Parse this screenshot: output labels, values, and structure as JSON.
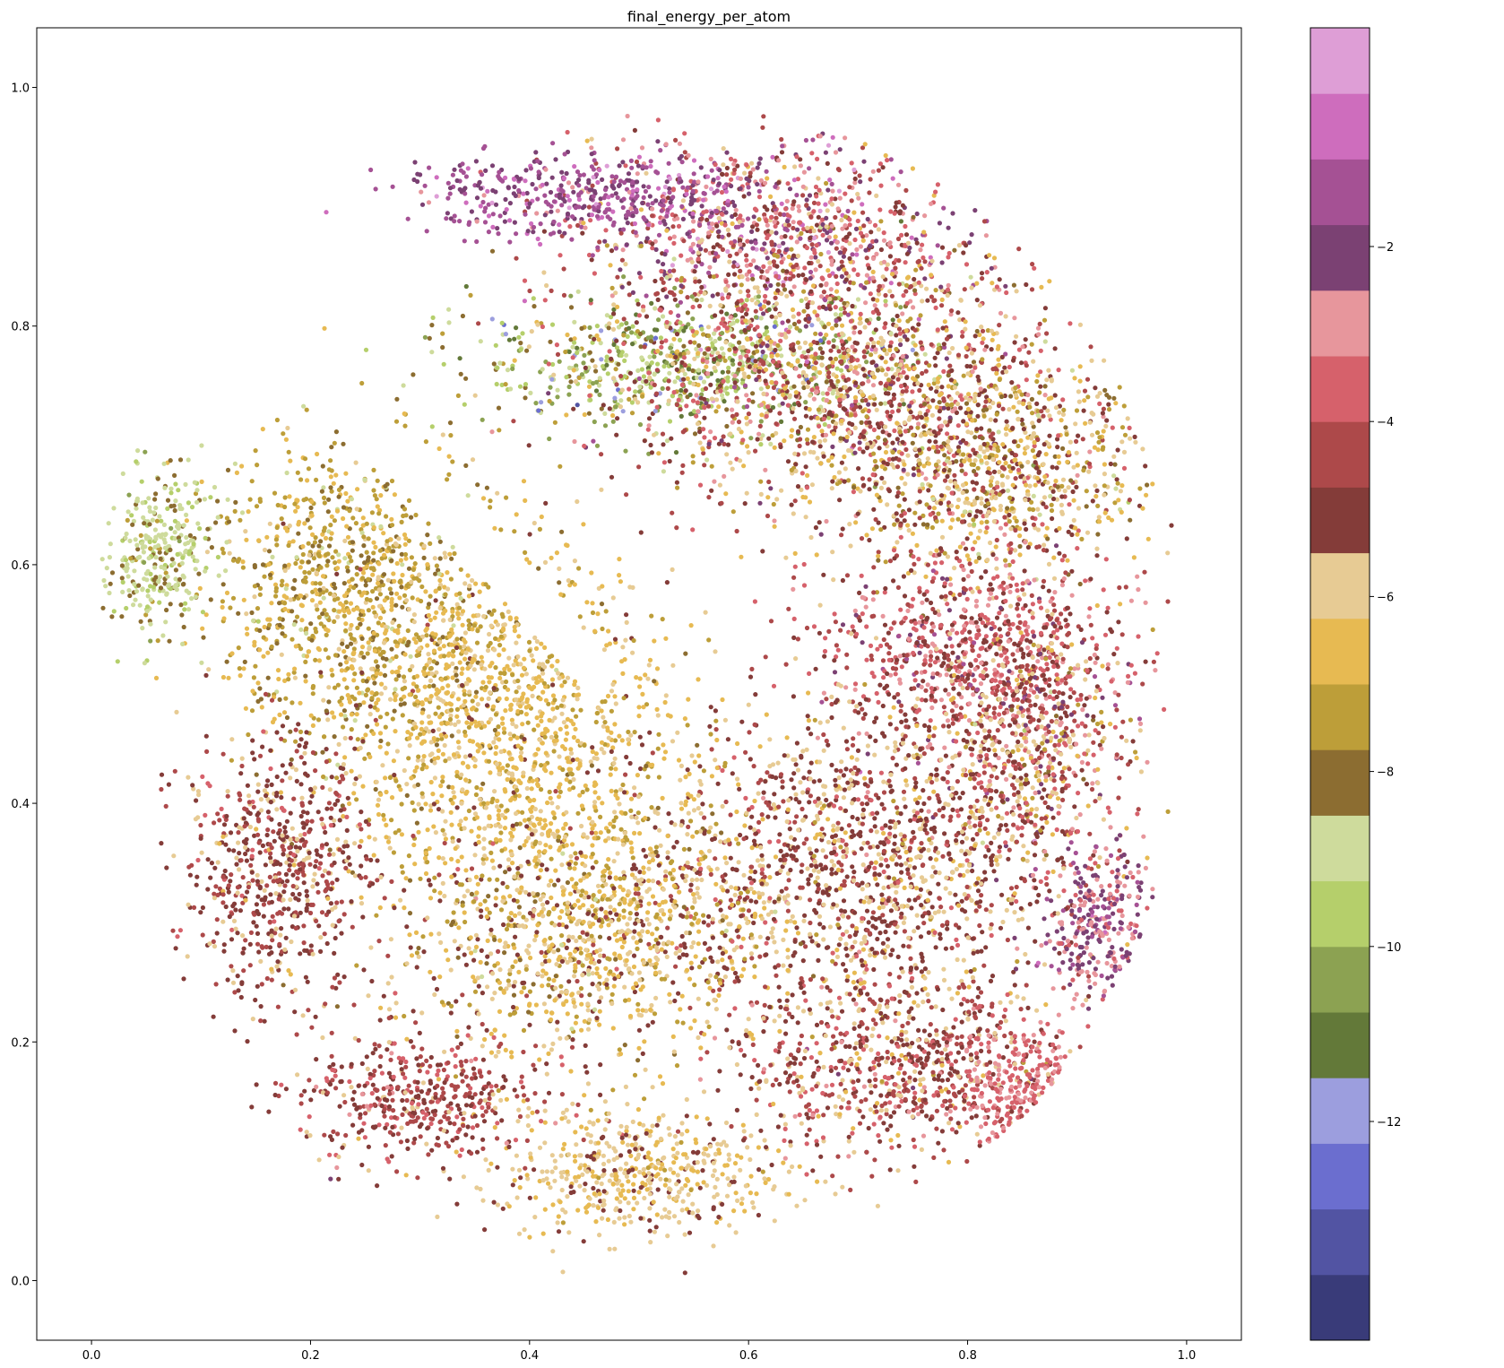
{
  "chart_data": {
    "type": "scatter",
    "title": "final_energy_per_atom",
    "xlabel": "",
    "ylabel": "",
    "xlim": [
      -0.05,
      1.05
    ],
    "ylim": [
      -0.05,
      1.05
    ],
    "x_ticks": [
      "0.0",
      "0.2",
      "0.4",
      "0.6",
      "0.8",
      "1.0"
    ],
    "y_ticks": [
      "0.0",
      "0.2",
      "0.4",
      "0.6",
      "0.8",
      "1.0"
    ],
    "grid": false,
    "colorbar": {
      "label": "",
      "range": [
        -14.5,
        0.5
      ],
      "tick_values": [
        -12,
        -10,
        -8,
        -6,
        -4,
        -2
      ],
      "tick_labels": [
        "−12",
        "−10",
        "−8",
        "−6",
        "−4",
        "−2"
      ],
      "colors": [
        "#393b79",
        "#5254a3",
        "#6b6ecf",
        "#9c9ede",
        "#637939",
        "#8ca252",
        "#b5cf6b",
        "#cedb9c",
        "#8c6d31",
        "#bd9e39",
        "#e7ba52",
        "#e7cb94",
        "#843c39",
        "#ad494a",
        "#d6616b",
        "#e7969c",
        "#7b4173",
        "#a55194",
        "#ce6dbd",
        "#de9ed6"
      ]
    },
    "point_clusters": [
      {
        "region": "upper-right lobe, top",
        "cx": 0.62,
        "cy": 0.88,
        "rx": 0.16,
        "ry": 0.07,
        "energy": -3.5,
        "spread": 1.6
      },
      {
        "region": "upper-right lobe, purple band",
        "cx": 0.45,
        "cy": 0.91,
        "rx": 0.15,
        "ry": 0.03,
        "energy": -1.6,
        "spread": 0.6
      },
      {
        "region": "upper-right lobe, green band",
        "cx": 0.55,
        "cy": 0.77,
        "rx": 0.18,
        "ry": 0.05,
        "energy": -9.5,
        "spread": 1.4
      },
      {
        "region": "upper-right lobe, middle",
        "cx": 0.68,
        "cy": 0.76,
        "rx": 0.2,
        "ry": 0.1,
        "energy": -5,
        "spread": 1.5
      },
      {
        "region": "upper-right lobe, lower",
        "cx": 0.82,
        "cy": 0.68,
        "rx": 0.14,
        "ry": 0.08,
        "energy": -6.2,
        "spread": 1.2
      },
      {
        "region": "right side, pink",
        "cx": 0.8,
        "cy": 0.53,
        "rx": 0.12,
        "ry": 0.08,
        "energy": -4,
        "spread": 1
      },
      {
        "region": "right side, mixed",
        "cx": 0.86,
        "cy": 0.45,
        "rx": 0.08,
        "ry": 0.1,
        "energy": -4.8,
        "spread": 1.6
      },
      {
        "region": "center-right, dark red",
        "cx": 0.7,
        "cy": 0.35,
        "rx": 0.16,
        "ry": 0.12,
        "energy": -5.2,
        "spread": 0.8
      },
      {
        "region": "lower-right, red",
        "cx": 0.74,
        "cy": 0.18,
        "rx": 0.14,
        "ry": 0.07,
        "energy": -4.8,
        "spread": 0.9
      },
      {
        "region": "left lobe, olive",
        "cx": 0.24,
        "cy": 0.58,
        "rx": 0.12,
        "ry": 0.12,
        "energy": -7.3,
        "spread": 0.7
      },
      {
        "region": "left lobe, gold",
        "cx": 0.38,
        "cy": 0.47,
        "rx": 0.14,
        "ry": 0.12,
        "energy": -6.6,
        "spread": 0.6
      },
      {
        "region": "left lobe, lower gold",
        "cx": 0.45,
        "cy": 0.3,
        "rx": 0.16,
        "ry": 0.1,
        "energy": -6.4,
        "spread": 0.9
      },
      {
        "region": "far left, light green",
        "cx": 0.06,
        "cy": 0.61,
        "rx": 0.05,
        "ry": 0.06,
        "energy": -8.8,
        "spread": 0.5
      },
      {
        "region": "left edge, red arcs",
        "cx": 0.17,
        "cy": 0.35,
        "rx": 0.08,
        "ry": 0.1,
        "energy": -5,
        "spread": 0.6
      },
      {
        "region": "bottom, beige",
        "cx": 0.5,
        "cy": 0.09,
        "rx": 0.12,
        "ry": 0.05,
        "energy": -6,
        "spread": 0.5
      },
      {
        "region": "bottom-left, red",
        "cx": 0.3,
        "cy": 0.15,
        "rx": 0.1,
        "ry": 0.05,
        "energy": -4.6,
        "spread": 0.7
      },
      {
        "region": "right edge, purple",
        "cx": 0.92,
        "cy": 0.3,
        "rx": 0.05,
        "ry": 0.06,
        "energy": -2.5,
        "spread": 0.6
      },
      {
        "region": "far right, pink",
        "cx": 0.85,
        "cy": 0.15,
        "rx": 0.05,
        "ry": 0.05,
        "energy": -3.4,
        "spread": 0.3
      }
    ]
  }
}
